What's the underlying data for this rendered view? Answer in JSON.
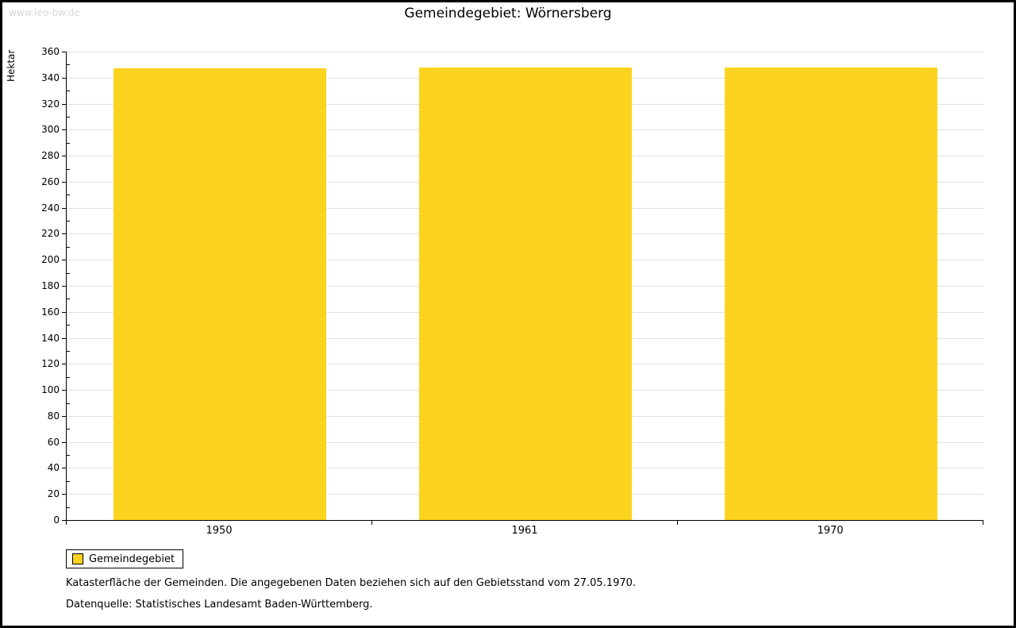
{
  "watermark": "www.leo-bw.de",
  "title": "Gemeindegebiet: Wörnersberg",
  "legend": {
    "label": "Gemeindegebiet"
  },
  "footnotes": {
    "line1": "Katasterfläche der Gemeinden. Die angegebenen Daten beziehen sich auf den Gebietsstand vom 27.05.1970.",
    "line2": "Datenquelle: Statistisches Landesamt Baden-Württemberg."
  },
  "chart_data": {
    "type": "bar",
    "title": "Gemeindegebiet: Wörnersberg",
    "categories": [
      "1950",
      "1961",
      "1970"
    ],
    "series": [
      {
        "name": "Gemeindegebiet",
        "values": [
          347,
          348,
          348
        ]
      }
    ],
    "xlabel": "",
    "ylabel": "Hektar",
    "ylim": [
      0,
      360
    ],
    "ytick_step": 20,
    "ytick_minor_step": 10,
    "grid": true,
    "legend_position": "bottom-left",
    "bar_color": "#FCD420"
  }
}
